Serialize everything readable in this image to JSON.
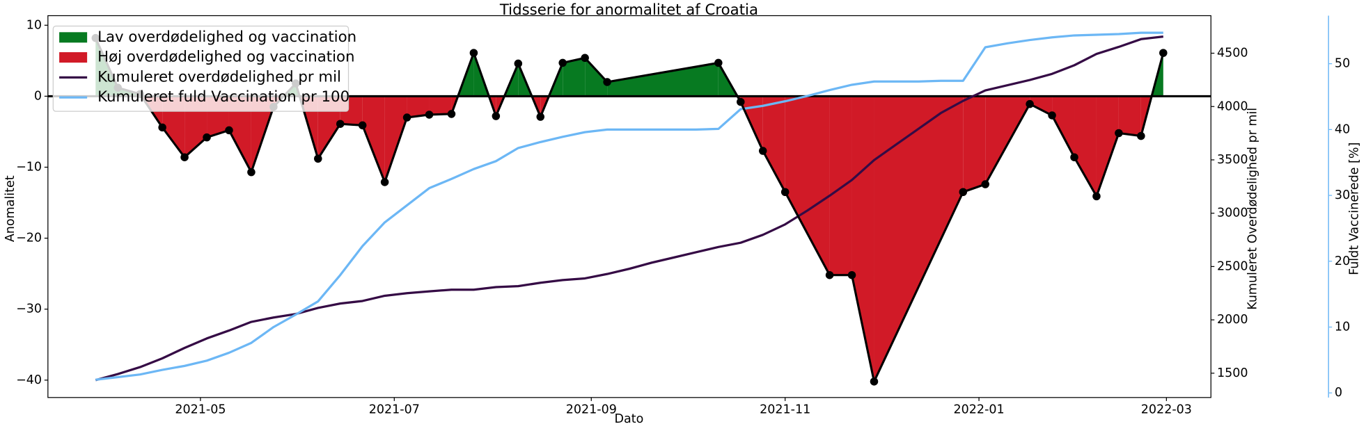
{
  "chart_data": {
    "type": "line",
    "title": "Tidsserie for anormalitet af Croatia",
    "x_label": "Dato",
    "y_label": "Anomalitet",
    "y2_label": "Kumuleret Overdødelighed pr mil",
    "y3_label": "Fuldt Vaccinerede [%]",
    "xlim": [
      "2021-03-14",
      "2022-03-15"
    ],
    "xticks": [
      {
        "value": "2021-05-01",
        "label": "2021-05"
      },
      {
        "value": "2021-07-01",
        "label": "2021-07"
      },
      {
        "value": "2021-09-01",
        "label": "2021-09"
      },
      {
        "value": "2021-11-01",
        "label": "2021-11"
      },
      {
        "value": "2022-01-01",
        "label": "2022-01"
      },
      {
        "value": "2022-03-01",
        "label": "2022-03"
      }
    ],
    "ylim": [
      -42.45,
      11.35
    ],
    "yticks": [
      {
        "value": -40,
        "label": "−40"
      },
      {
        "value": -30,
        "label": "−30"
      },
      {
        "value": -20,
        "label": "−20"
      },
      {
        "value": -10,
        "label": "−10"
      },
      0,
      10
    ],
    "y2lim": [
      1272,
      4852
    ],
    "y2ticks": [
      1500,
      2000,
      2500,
      3000,
      3500,
      4000,
      4500
    ],
    "y3lim": [
      -0.7,
      57.3
    ],
    "y3ticks": [
      0,
      10,
      20,
      30,
      40,
      50
    ],
    "baseline": 0,
    "legend": "upper left",
    "fills": [
      {
        "name": "Lav overdødelighed og vaccination",
        "color": "#077a21",
        "sign": "positive"
      },
      {
        "name": "Høj overdødelighed og vaccination",
        "color": "#d11a27",
        "sign": "negative"
      }
    ],
    "series": [
      {
        "color": "#000000",
        "axis": "y",
        "marker": true,
        "x": [
          "2021-03-29",
          "2021-04-05",
          "2021-04-12",
          "2021-04-19",
          "2021-04-26",
          "2021-05-03",
          "2021-05-10",
          "2021-05-17",
          "2021-05-24",
          "2021-05-31",
          "2021-06-07",
          "2021-06-14",
          "2021-06-21",
          "2021-06-28",
          "2021-07-05",
          "2021-07-12",
          "2021-07-19",
          "2021-07-26",
          "2021-08-02",
          "2021-08-09",
          "2021-08-16",
          "2021-08-23",
          "2021-08-30",
          "2021-09-06",
          "2021-10-11",
          "2021-10-18",
          "2021-10-25",
          "2021-11-01",
          "2021-11-15",
          "2021-11-22",
          "2021-11-29",
          "2021-12-27",
          "2022-01-03",
          "2022-01-17",
          "2022-01-24",
          "2022-01-31",
          "2022-02-07",
          "2022-02-14",
          "2022-02-21",
          "2022-02-28"
        ],
        "values": [
          8.2,
          1.2,
          0.3,
          -4.4,
          -8.6,
          -5.8,
          -4.8,
          -10.7,
          -1.5,
          1.8,
          -8.8,
          -3.9,
          -4.1,
          -12.1,
          -3.0,
          -2.6,
          -2.5,
          6.1,
          -2.8,
          4.6,
          -2.9,
          4.7,
          5.4,
          2.0,
          4.7,
          -0.8,
          -7.7,
          -13.5,
          -25.2,
          -25.2,
          -40.2,
          -13.5,
          -12.4,
          -1.1,
          -2.7,
          -8.6,
          -14.1,
          -5.2,
          -5.6,
          6.1
        ]
      },
      {
        "name": "Kumuleret overdødelighed pr mil",
        "color": "#350b45",
        "axis": "y2",
        "marker": false,
        "x": [
          "2021-03-29",
          "2021-04-05",
          "2021-04-12",
          "2021-04-19",
          "2021-04-26",
          "2021-05-03",
          "2021-05-10",
          "2021-05-17",
          "2021-05-24",
          "2021-05-31",
          "2021-06-07",
          "2021-06-14",
          "2021-06-21",
          "2021-06-28",
          "2021-07-05",
          "2021-07-12",
          "2021-07-19",
          "2021-07-26",
          "2021-08-02",
          "2021-08-09",
          "2021-08-16",
          "2021-08-23",
          "2021-08-30",
          "2021-09-06",
          "2021-09-13",
          "2021-09-20",
          "2021-09-27",
          "2021-10-04",
          "2021-10-11",
          "2021-10-18",
          "2021-10-25",
          "2021-11-01",
          "2021-11-08",
          "2021-11-15",
          "2021-11-22",
          "2021-11-29",
          "2021-12-06",
          "2021-12-13",
          "2021-12-20",
          "2021-12-27",
          "2022-01-03",
          "2022-01-10",
          "2022-01-17",
          "2022-01-24",
          "2022-01-31",
          "2022-02-07",
          "2022-02-14",
          "2022-02-21",
          "2022-02-28"
        ],
        "values": [
          1435,
          1492,
          1557,
          1639,
          1737,
          1826,
          1900,
          1981,
          2022,
          2055,
          2112,
          2153,
          2177,
          2226,
          2250,
          2267,
          2283,
          2283,
          2307,
          2316,
          2348,
          2373,
          2389,
          2430,
          2479,
          2536,
          2585,
          2634,
          2683,
          2723,
          2797,
          2895,
          3025,
          3164,
          3311,
          3498,
          3645,
          3792,
          3939,
          4053,
          4151,
          4200,
          4249,
          4306,
          4387,
          4493,
          4559,
          4632,
          4656
        ]
      },
      {
        "name": "Kumuleret fuld Vaccination pr 100",
        "color": "#6cb7f5",
        "axis": "y3",
        "marker": false,
        "x": [
          "2021-03-29",
          "2021-04-05",
          "2021-04-12",
          "2021-04-19",
          "2021-04-26",
          "2021-05-03",
          "2021-05-10",
          "2021-05-17",
          "2021-05-24",
          "2021-05-31",
          "2021-06-07",
          "2021-06-14",
          "2021-06-21",
          "2021-06-28",
          "2021-07-05",
          "2021-07-12",
          "2021-07-19",
          "2021-07-26",
          "2021-08-02",
          "2021-08-09",
          "2021-08-16",
          "2021-08-23",
          "2021-08-30",
          "2021-09-06",
          "2021-09-13",
          "2021-09-20",
          "2021-09-27",
          "2021-10-04",
          "2021-10-11",
          "2021-10-18",
          "2021-10-25",
          "2021-11-01",
          "2021-11-08",
          "2021-11-15",
          "2021-11-22",
          "2021-11-29",
          "2021-12-06",
          "2021-12-13",
          "2021-12-20",
          "2021-12-27",
          "2022-01-03",
          "2022-01-10",
          "2022-01-17",
          "2022-01-24",
          "2022-01-31",
          "2022-02-07",
          "2022-02-14",
          "2022-02-21",
          "2022-02-28"
        ],
        "values": [
          2.0,
          2.4,
          2.8,
          3.5,
          4.1,
          4.9,
          6.1,
          7.6,
          10.0,
          11.9,
          13.9,
          17.9,
          22.3,
          25.9,
          28.5,
          31.1,
          32.5,
          34.0,
          35.2,
          37.2,
          38.1,
          38.9,
          39.6,
          40.0,
          40.0,
          40.0,
          40.0,
          40.0,
          40.1,
          43.1,
          43.6,
          44.3,
          45.1,
          46.0,
          46.8,
          47.3,
          47.3,
          47.3,
          47.4,
          47.4,
          52.5,
          53.1,
          53.6,
          54.0,
          54.3,
          54.4,
          54.5,
          54.7,
          54.7
        ]
      }
    ]
  }
}
